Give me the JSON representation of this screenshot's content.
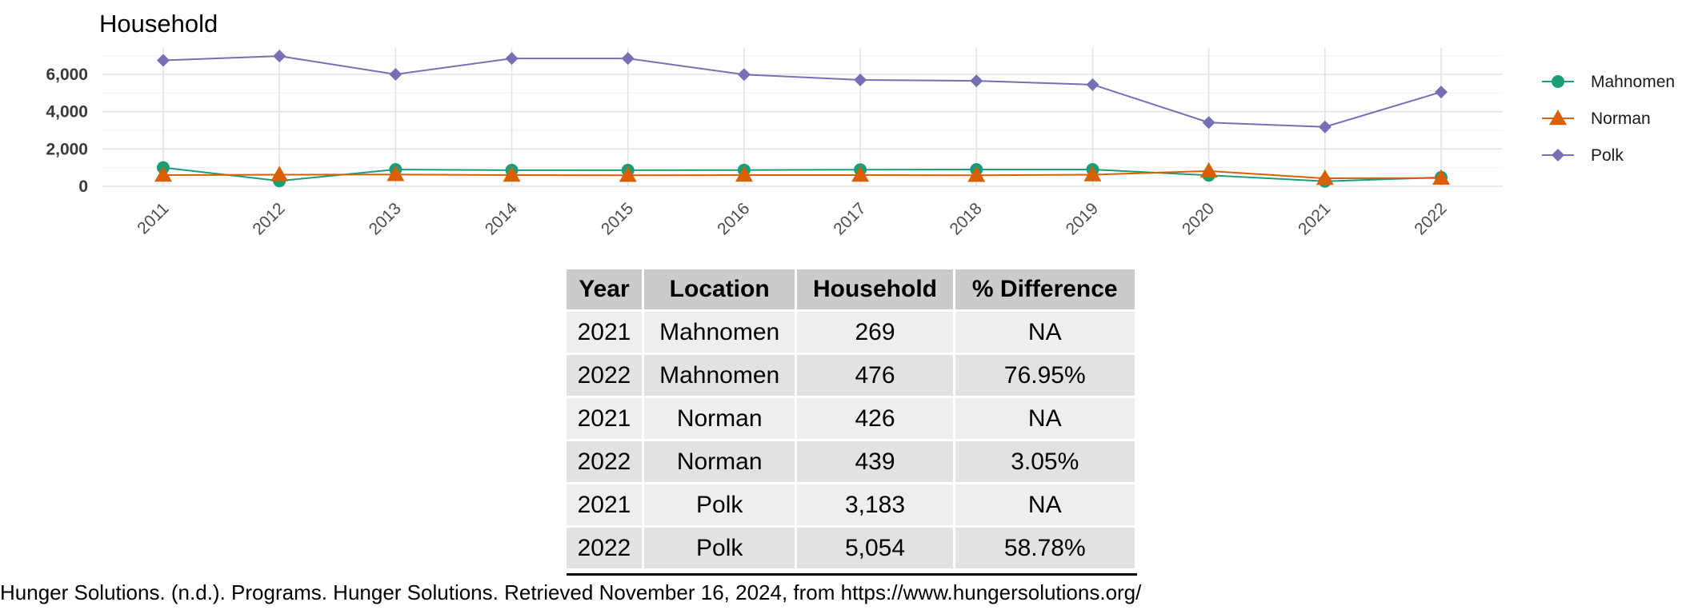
{
  "chart_data": {
    "type": "line",
    "title": "Household",
    "xlabel": "",
    "ylabel": "",
    "x": [
      "2011",
      "2012",
      "2013",
      "2014",
      "2015",
      "2016",
      "2017",
      "2018",
      "2019",
      "2020",
      "2021",
      "2022"
    ],
    "yticks": [
      0,
      2000,
      4000,
      6000
    ],
    "ytick_labels": [
      "0",
      "2,000",
      "4,000",
      "6,000"
    ],
    "ylim": [
      0,
      7400
    ],
    "grid": true,
    "legend": "right",
    "series": [
      {
        "name": "Mahnomen",
        "color": "#1b9e77",
        "marker": "circle",
        "values": [
          1000,
          290,
          900,
          860,
          860,
          870,
          890,
          900,
          900,
          590,
          269,
          476
        ]
      },
      {
        "name": "Norman",
        "color": "#d95f02",
        "marker": "triangle",
        "values": [
          600,
          620,
          630,
          600,
          590,
          600,
          600,
          590,
          620,
          820,
          426,
          439
        ]
      },
      {
        "name": "Polk",
        "color": "#7570b3",
        "marker": "diamond",
        "values": [
          6750,
          6980,
          6000,
          6850,
          6850,
          5990,
          5700,
          5650,
          5450,
          3420,
          3183,
          5054
        ]
      }
    ]
  },
  "table": {
    "headers": [
      "Year",
      "Location",
      "Household",
      "% Difference"
    ],
    "rows": [
      [
        "2021",
        "Mahnomen",
        "269",
        "NA"
      ],
      [
        "2022",
        "Mahnomen",
        "476",
        "76.95%"
      ],
      [
        "2021",
        "Norman",
        "426",
        "NA"
      ],
      [
        "2022",
        "Norman",
        "439",
        "3.05%"
      ],
      [
        "2021",
        "Polk",
        "3,183",
        "NA"
      ],
      [
        "2022",
        "Polk",
        "5,054",
        "58.78%"
      ]
    ]
  },
  "source_caption": "Hunger Solutions. (n.d.). Programs. Hunger Solutions. Retrieved November 16, 2024, from https://www.hungersolutions.org/"
}
